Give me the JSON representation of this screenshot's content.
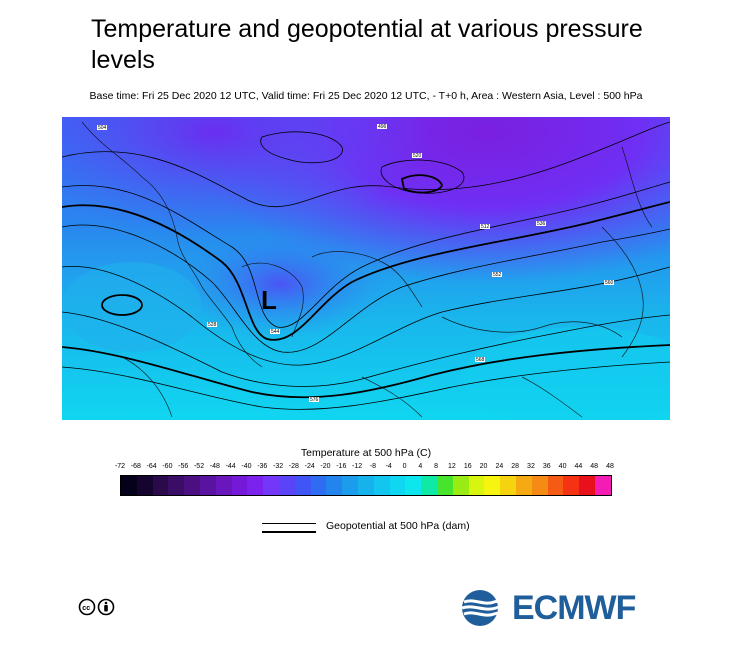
{
  "title": "Temperature and geopotential at various pressure levels",
  "subtitle": "Base time: Fri 25 Dec 2020 12 UTC, Valid time: Fri 25 Dec 2020 12 UTC, - T+0 h, Area : Western Asia, Level : 500 hPa",
  "map": {
    "low_marker": "L",
    "contour_labels": [
      "528",
      "536",
      "544",
      "552",
      "560",
      "568",
      "576",
      "520",
      "512",
      "504",
      "496"
    ]
  },
  "colorbar": {
    "title": "Temperature at 500 hPa (C)",
    "ticks": [
      "-72",
      "-68",
      "-64",
      "-60",
      "-56",
      "-52",
      "-48",
      "-44",
      "-40",
      "-36",
      "-32",
      "-28",
      "-24",
      "-20",
      "-16",
      "-12",
      "-8",
      "-4",
      "0",
      "4",
      "8",
      "12",
      "16",
      "20",
      "24",
      "28",
      "32",
      "36",
      "40",
      "44",
      "48",
      "48"
    ],
    "colors": [
      "#05011a",
      "#15052e",
      "#2b0a4b",
      "#3a0d66",
      "#4b0f82",
      "#5a12a0",
      "#6a16bd",
      "#7519d8",
      "#7c22ee",
      "#7436f8",
      "#5b44f8",
      "#3f55f5",
      "#2e6cf2",
      "#2484ee",
      "#1c9cec",
      "#15b2ec",
      "#12c6ef",
      "#10d7f1",
      "#0ee6ee",
      "#0fe9a6",
      "#46e42c",
      "#98ec14",
      "#d7f50f",
      "#f5f50f",
      "#f5d30f",
      "#f5aa12",
      "#f58a14",
      "#f55b14",
      "#f53314",
      "#e8101b",
      "#f31cb4"
    ]
  },
  "legend": {
    "geopotential_label": "Geopotential at 500 hPa (dam)"
  },
  "logo": {
    "brand_text": "ECMWF",
    "license_icon": "cc-by-icon"
  }
}
